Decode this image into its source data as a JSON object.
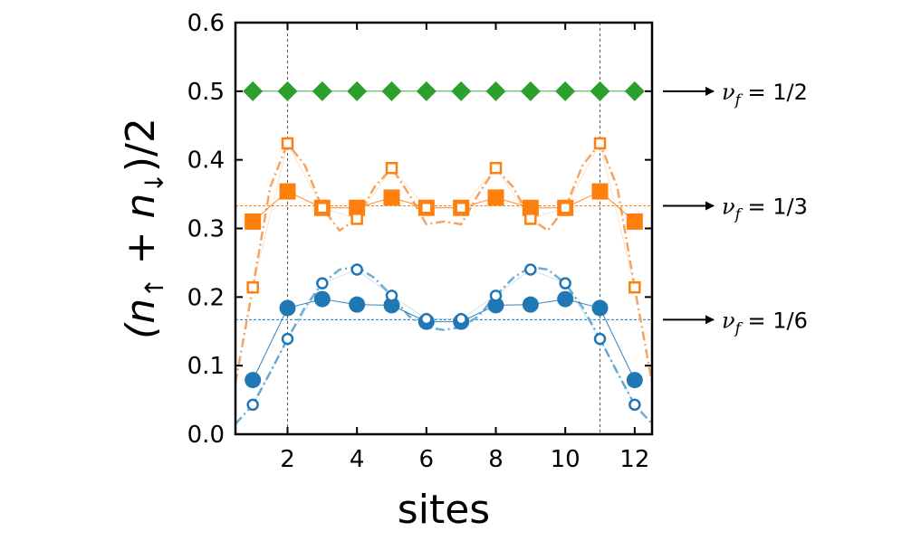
{
  "chart_data": {
    "type": "line",
    "xlabel": "sites",
    "ylabel": "(n",
    "ylabel_sub1": "↑",
    "ylabel_mid": " + n",
    "ylabel_sub2": "↓",
    "ylabel_end": ")/2",
    "xlim": [
      0.5,
      12.5
    ],
    "ylim": [
      0.0,
      0.6
    ],
    "x_ticks": [
      2,
      4,
      6,
      8,
      10,
      12
    ],
    "y_ticks": [
      0.0,
      0.1,
      0.2,
      0.3,
      0.4,
      0.5,
      0.6
    ],
    "x_tick_labels": [
      "2",
      "4",
      "6",
      "8",
      "10",
      "12"
    ],
    "y_tick_labels": [
      "0.0",
      "0.1",
      "0.2",
      "0.3",
      "0.4",
      "0.5",
      "0.6"
    ],
    "vertical_guides": [
      2,
      11
    ],
    "x": [
      1,
      2,
      3,
      4,
      5,
      6,
      7,
      8,
      9,
      10,
      11,
      12
    ],
    "series": [
      {
        "group": "nu_1_2",
        "style": "filled-diamond",
        "color": "#2ca02c",
        "values": [
          0.5,
          0.5,
          0.5,
          0.5,
          0.5,
          0.5,
          0.5,
          0.5,
          0.5,
          0.5,
          0.5,
          0.5
        ]
      },
      {
        "group": "nu_1_3",
        "style": "filled-square",
        "color": "#ff7f0e",
        "values": [
          0.31,
          0.354,
          0.33,
          0.33,
          0.345,
          0.33,
          0.33,
          0.345,
          0.33,
          0.33,
          0.354,
          0.31
        ]
      },
      {
        "group": "nu_1_3",
        "style": "open-square",
        "color": "#ff7f0e",
        "values": [
          0.214,
          0.424,
          0.33,
          0.314,
          0.388,
          0.33,
          0.33,
          0.388,
          0.314,
          0.33,
          0.424,
          0.214
        ]
      },
      {
        "group": "nu_1_6",
        "style": "filled-circle",
        "color": "#1f77b4",
        "values": [
          0.079,
          0.184,
          0.197,
          0.189,
          0.188,
          0.164,
          0.164,
          0.188,
          0.189,
          0.197,
          0.184,
          0.079
        ]
      },
      {
        "group": "nu_1_6",
        "style": "open-circle",
        "color": "#1f77b4",
        "values": [
          0.043,
          0.139,
          0.22,
          0.24,
          0.202,
          0.168,
          0.168,
          0.202,
          0.24,
          0.22,
          0.139,
          0.043
        ]
      }
    ],
    "fit_curves": [
      {
        "group": "nu_1_3",
        "color": "#f4a460",
        "x": [
          0.5,
          1.0,
          1.5,
          2.0,
          2.5,
          3.0,
          3.5,
          4.0,
          4.5,
          5.0,
          5.5,
          6.0,
          6.5,
          7.0,
          7.5,
          8.0,
          8.5,
          9.0,
          9.5,
          10.0,
          10.5,
          11.0,
          11.5,
          12.0,
          12.5
        ],
        "y": [
          0.075,
          0.214,
          0.36,
          0.424,
          0.392,
          0.33,
          0.297,
          0.314,
          0.36,
          0.388,
          0.35,
          0.306,
          0.31,
          0.306,
          0.35,
          0.388,
          0.36,
          0.314,
          0.297,
          0.33,
          0.392,
          0.424,
          0.36,
          0.214,
          0.075
        ]
      },
      {
        "group": "nu_1_6",
        "color": "#6baed6",
        "x": [
          0.5,
          1.0,
          1.5,
          2.0,
          2.5,
          3.0,
          3.5,
          4.0,
          4.5,
          5.0,
          5.5,
          6.0,
          6.5,
          7.0,
          7.5,
          8.0,
          8.5,
          9.0,
          9.5,
          10.0,
          10.5,
          11.0,
          11.5,
          12.0,
          12.5
        ],
        "y": [
          0.015,
          0.043,
          0.09,
          0.139,
          0.185,
          0.22,
          0.24,
          0.244,
          0.228,
          0.202,
          0.172,
          0.156,
          0.152,
          0.156,
          0.172,
          0.202,
          0.228,
          0.244,
          0.24,
          0.22,
          0.185,
          0.139,
          0.09,
          0.043,
          0.015
        ]
      }
    ],
    "reference_lines": [
      {
        "group": "nu_1_3",
        "y": 0.333,
        "color": "#ff7f0e"
      },
      {
        "group": "nu_1_6",
        "y": 0.167,
        "color": "#1f77b4"
      }
    ],
    "annotations": [
      {
        "group": "nu_1_2",
        "y": 0.5,
        "text": "ν",
        "sub": "f",
        "rest": " = 1/2"
      },
      {
        "group": "nu_1_3",
        "y": 0.333,
        "text": "ν",
        "sub": "f",
        "rest": " = 1/3"
      },
      {
        "group": "nu_1_6",
        "y": 0.167,
        "text": "ν",
        "sub": "f",
        "rest": " = 1/6"
      }
    ],
    "grid": false
  }
}
